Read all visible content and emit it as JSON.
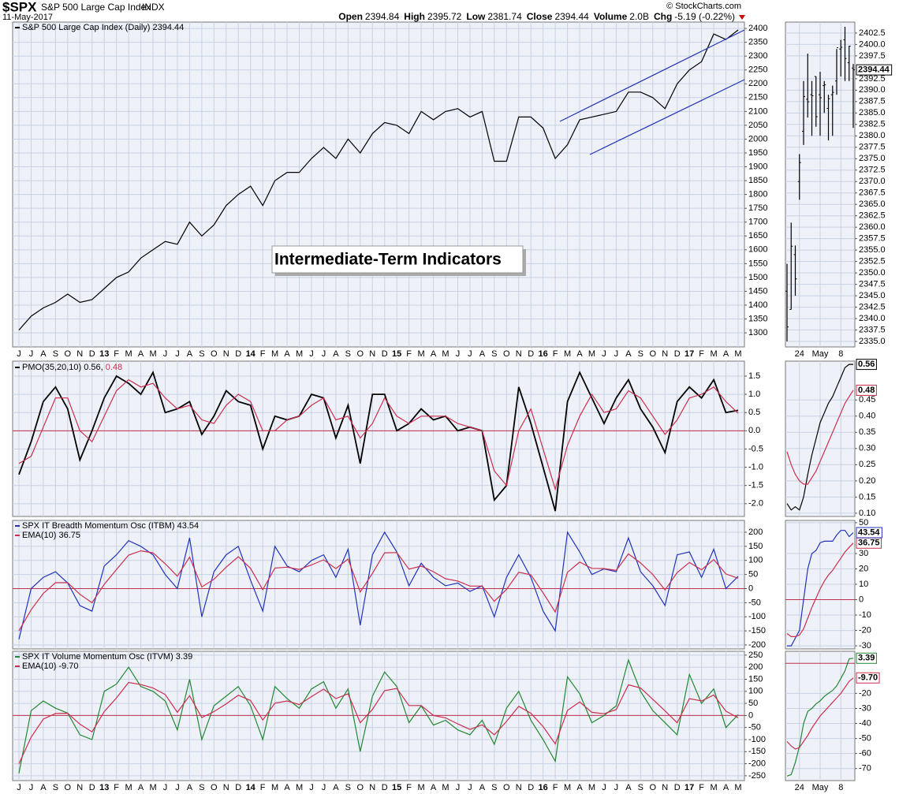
{
  "header": {
    "symbol": "$SPX",
    "name": "S&P 500 Large Cap Index",
    "exchange": "INDX",
    "date": "11-May-2017",
    "credit": "© StockCharts.com",
    "quote": [
      {
        "label": "Open",
        "value": "2394.84"
      },
      {
        "label": "High",
        "value": "2395.72"
      },
      {
        "label": "Low",
        "value": "2381.74"
      },
      {
        "label": "Close",
        "value": "2394.44"
      },
      {
        "label": "Volume",
        "value": "2.0B"
      },
      {
        "label": "Chg",
        "value": "-5.19 (-0.22%)"
      }
    ]
  },
  "chart_data": [
    {
      "type": "line",
      "annotation": "Intermediate-Term Indicators",
      "categories": [
        "J",
        "J",
        "A",
        "S",
        "O",
        "N",
        "D",
        "13",
        "F",
        "M",
        "A",
        "M",
        "J",
        "J",
        "A",
        "S",
        "O",
        "N",
        "D",
        "14",
        "F",
        "M",
        "A",
        "M",
        "J",
        "J",
        "A",
        "S",
        "O",
        "N",
        "D",
        "15",
        "F",
        "M",
        "A",
        "M",
        "J",
        "J",
        "A",
        "S",
        "O",
        "N",
        "D",
        "16",
        "F",
        "M",
        "A",
        "M",
        "J",
        "J",
        "A",
        "S",
        "O",
        "N",
        "D",
        "17",
        "F",
        "M",
        "A",
        "M"
      ],
      "series": [
        {
          "name": "S&P 500 Large Cap Index (Daily) 2394.44",
          "color": "#000000",
          "values": [
            1310,
            1360,
            1390,
            1410,
            1440,
            1410,
            1420,
            1460,
            1500,
            1520,
            1570,
            1600,
            1630,
            1620,
            1700,
            1650,
            1690,
            1760,
            1800,
            1830,
            1760,
            1850,
            1880,
            1880,
            1930,
            1970,
            1930,
            2000,
            1950,
            2020,
            2060,
            2050,
            2020,
            2100,
            2070,
            2100,
            2110,
            2080,
            2100,
            1920,
            1920,
            2080,
            2080,
            2040,
            1930,
            1980,
            2070,
            2080,
            2090,
            2100,
            2170,
            2170,
            2150,
            2110,
            2200,
            2250,
            2280,
            2380,
            2360,
            2394.44
          ]
        }
      ],
      "ylim": [
        1249,
        2423
      ],
      "yticks": [
        1300,
        1350,
        1400,
        1450,
        1500,
        1550,
        1600,
        1650,
        1700,
        1750,
        1800,
        1850,
        1900,
        1950,
        2000,
        2050,
        2100,
        2150,
        2200,
        2250,
        2300,
        2350,
        2400
      ],
      "grid": true
    },
    {
      "type": "line",
      "hline": 0,
      "series": [
        {
          "name": "PMO(35,20,10) 0.56,",
          "color": "#000000",
          "values": [
            -1.2,
            -0.3,
            0.8,
            1.2,
            0.6,
            -0.8,
            0.0,
            0.9,
            1.5,
            1.3,
            1.0,
            1.6,
            0.5,
            0.6,
            0.8,
            -0.1,
            0.4,
            1.1,
            0.8,
            0.7,
            -0.5,
            0.4,
            0.3,
            0.4,
            1.0,
            0.9,
            -0.2,
            0.7,
            -0.9,
            1.0,
            1.0,
            0.0,
            0.2,
            0.6,
            0.3,
            0.4,
            0.0,
            0.1,
            0.0,
            -1.9,
            -1.5,
            1.2,
            0.2,
            -1.0,
            -2.2,
            0.8,
            1.6,
            0.9,
            0.2,
            0.9,
            1.4,
            0.6,
            0.1,
            -0.6,
            0.8,
            1.2,
            0.9,
            1.4,
            0.5,
            0.56
          ]
        },
        {
          "name": "0.48",
          "color": "#cc2e4e",
          "values": [
            -0.9,
            -0.7,
            0.1,
            0.9,
            0.9,
            0.0,
            -0.3,
            0.4,
            1.1,
            1.4,
            1.2,
            1.3,
            0.9,
            0.6,
            0.7,
            0.3,
            0.2,
            0.7,
            1.0,
            0.8,
            0.0,
            0.0,
            0.3,
            0.4,
            0.7,
            0.9,
            0.3,
            0.4,
            -0.2,
            0.2,
            0.9,
            0.4,
            0.2,
            0.4,
            0.4,
            0.4,
            0.2,
            0.1,
            0.0,
            -1.1,
            -1.5,
            0.0,
            0.6,
            -0.5,
            -1.6,
            -0.4,
            0.4,
            1.0,
            0.5,
            0.6,
            1.1,
            0.9,
            0.4,
            -0.1,
            0.3,
            0.9,
            1.0,
            1.2,
            0.8,
            0.48
          ]
        }
      ],
      "ylim": [
        -2.35,
        1.91
      ],
      "yticks": [
        {
          "value": -2,
          "label": "-2.0"
        },
        -1.5,
        {
          "value": -1,
          "label": "-1.0"
        },
        -0.5,
        {
          "value": 0,
          "label": "0.0"
        },
        0.5,
        {
          "value": 1,
          "label": "1.0"
        },
        1.5
      ],
      "grid": true
    },
    {
      "type": "line",
      "hline": 0,
      "series": [
        {
          "name": "SPX IT Breadth Momentum Osc (ITBM) 43.54",
          "color": "#2233bb",
          "values": [
            -180,
            0,
            40,
            60,
            20,
            -60,
            -80,
            80,
            120,
            170,
            150,
            120,
            50,
            0,
            180,
            -100,
            60,
            120,
            150,
            30,
            -80,
            150,
            80,
            60,
            100,
            120,
            40,
            140,
            -130,
            120,
            200,
            130,
            10,
            90,
            40,
            10,
            20,
            -10,
            10,
            -100,
            40,
            120,
            40,
            -80,
            -150,
            200,
            130,
            50,
            70,
            60,
            180,
            60,
            10,
            -60,
            120,
            130,
            40,
            140,
            0,
            43.54
          ]
        },
        {
          "name": "EMA(10) 36.75",
          "color": "#cc2e4e",
          "values": [
            -150,
            -75,
            -17,
            21,
            21,
            -20,
            -50,
            15,
            68,
            119,
            134,
            127,
            88,
            44,
            112,
            6,
            33,
            76,
            113,
            72,
            -4,
            73,
            76,
            68,
            84,
            102,
            71,
            105,
            -12,
            54,
            127,
            128,
            69,
            80,
            60,
            35,
            27,
            9,
            9,
            -45,
            -3,
            58,
            49,
            -15,
            -83,
            58,
            94,
            72,
            71,
            65,
            123,
            91,
            50,
            -5,
            57,
            93,
            67,
            103,
            52,
            36.75
          ]
        }
      ],
      "ylim": [
        -214,
        242
      ],
      "yticks": [
        -200,
        -150,
        -100,
        -50,
        0,
        50,
        100,
        150,
        200
      ],
      "grid": true
    },
    {
      "type": "line",
      "hline": 0,
      "categories": [
        "J",
        "J",
        "A",
        "S",
        "O",
        "N",
        "D",
        "13",
        "F",
        "M",
        "A",
        "M",
        "J",
        "J",
        "A",
        "S",
        "O",
        "N",
        "D",
        "14",
        "F",
        "M",
        "A",
        "M",
        "J",
        "J",
        "A",
        "S",
        "O",
        "N",
        "D",
        "15",
        "F",
        "M",
        "A",
        "M",
        "J",
        "J",
        "A",
        "S",
        "O",
        "N",
        "D",
        "16",
        "F",
        "M",
        "A",
        "M",
        "J",
        "J",
        "A",
        "S",
        "O",
        "N",
        "D",
        "17",
        "F",
        "M",
        "A",
        "M"
      ],
      "series": [
        {
          "name": "SPX IT Volume Momentum Osc (ITVM) 3.39",
          "color": "#228833",
          "values": [
            -240,
            20,
            60,
            30,
            10,
            -80,
            -100,
            100,
            130,
            200,
            120,
            100,
            60,
            -60,
            150,
            -100,
            40,
            80,
            120,
            40,
            -100,
            120,
            70,
            30,
            110,
            140,
            30,
            110,
            -150,
            80,
            180,
            120,
            -30,
            40,
            -40,
            -20,
            -60,
            -80,
            -20,
            -120,
            30,
            100,
            -20,
            -100,
            -190,
            160,
            90,
            -30,
            0,
            40,
            230,
            100,
            20,
            -30,
            -80,
            170,
            50,
            110,
            -50,
            3.39
          ]
        },
        {
          "name": "EMA(10) -9.70",
          "color": "#cc2e4e",
          "values": [
            -200,
            -90,
            -15,
            8,
            9,
            -36,
            -68,
            16,
            73,
            137,
            128,
            114,
            87,
            13,
            82,
            -9,
            16,
            48,
            84,
            62,
            -19,
            51,
            60,
            45,
            78,
            109,
            70,
            90,
            -30,
            25,
            103,
            112,
            41,
            41,
            0,
            -10,
            -35,
            -58,
            -39,
            -80,
            -25,
            38,
            9,
            -46,
            -118,
            21,
            56,
            13,
            7,
            24,
            127,
            114,
            67,
            19,
            -30,
            70,
            60,
            85,
            18,
            -9.7
          ]
        }
      ],
      "ylim": [
        -270,
        266
      ],
      "yticks": [
        -250,
        -200,
        -150,
        -100,
        -50,
        0,
        50,
        100,
        150,
        200,
        250
      ],
      "grid": true
    },
    {
      "type": "ohlc",
      "color": "#000000",
      "categories": [
        null,
        null,
        null,
        "24",
        null,
        null,
        null,
        null,
        "May",
        null,
        null,
        null,
        null,
        "8",
        null,
        null,
        null
      ],
      "open": [
        2346,
        2342,
        2354,
        2370,
        2381,
        2388,
        2389,
        2393,
        2389,
        2391,
        2386,
        2389,
        2392,
        2399,
        2401,
        2396,
        2394.84
      ],
      "high": [
        2352,
        2361,
        2356,
        2376,
        2392,
        2398,
        2392,
        2393,
        2394,
        2392,
        2389,
        2391,
        2399,
        2401,
        2403.87,
        2399.7,
        2395.72
      ],
      "low": [
        2335,
        2342,
        2345,
        2366,
        2378,
        2384,
        2380,
        2382,
        2380,
        2385,
        2379,
        2380,
        2389,
        2393,
        2392,
        2392,
        2381.74
      ],
      "close": [
        2338.17,
        2355.84,
        2348.69,
        2374.15,
        2388.61,
        2387.45,
        2388.77,
        2384.2,
        2388.33,
        2391.17,
        2388.13,
        2389.52,
        2399.29,
        2399.38,
        2396.92,
        2399.63,
        2394.44
      ],
      "ylim": [
        2333.8,
        2404.9
      ],
      "yticks": [
        {
          "value": 2335,
          "label": "2335.0"
        },
        2337.5,
        {
          "value": 2340,
          "label": "2340.0"
        },
        2342.5,
        {
          "value": 2345,
          "label": "2345.0"
        },
        2347.5,
        {
          "value": 2350,
          "label": "2350.0"
        },
        2352.5,
        {
          "value": 2355,
          "label": "2355.0"
        },
        2357.5,
        {
          "value": 2360,
          "label": "2360.0"
        },
        2362.5,
        {
          "value": 2365,
          "label": "2365.0"
        },
        2367.5,
        {
          "value": 2370,
          "label": "2370.0"
        },
        2372.5,
        {
          "value": 2375,
          "label": "2375.0"
        },
        2377.5,
        {
          "value": 2380,
          "label": "2380.0"
        },
        2382.5,
        {
          "value": 2385,
          "label": "2385.0"
        },
        2387.5,
        {
          "value": 2390,
          "label": "2390.0"
        },
        2392.5,
        2394.44,
        2397.5,
        {
          "value": 2400,
          "label": "2400.0"
        },
        2402.5
      ],
      "grid": true
    },
    {
      "type": "line",
      "series": [
        {
          "color": "#000000",
          "values": [
            0.13,
            0.11,
            0.12,
            0.11,
            0.15,
            0.22,
            0.28,
            0.33,
            0.38,
            0.41,
            0.44,
            0.46,
            0.49,
            0.52,
            0.55,
            0.56,
            0.56
          ]
        },
        {
          "color": "#cc2e4e",
          "values": [
            0.29,
            0.25,
            0.22,
            0.2,
            0.19,
            0.19,
            0.21,
            0.23,
            0.26,
            0.29,
            0.32,
            0.35,
            0.38,
            0.41,
            0.44,
            0.46,
            0.48
          ]
        }
      ],
      "ylim": [
        0.09,
        0.57
      ],
      "yticks": [
        {
          "value": 0.1,
          "label": "0.10"
        },
        0.15,
        {
          "value": 0.2,
          "label": "0.20"
        },
        0.25,
        {
          "value": 0.3,
          "label": "0.30"
        },
        0.35,
        {
          "value": 0.4,
          "label": "0.40"
        },
        0.45,
        0.48,
        0.56
      ],
      "grid": true
    },
    {
      "type": "line",
      "hline": 0,
      "series": [
        {
          "color": "#2233bb",
          "values": [
            -30,
            -30,
            -25,
            -20,
            0,
            20,
            30,
            32,
            37,
            38,
            38,
            38,
            42,
            45,
            45,
            41,
            43.54
          ]
        },
        {
          "color": "#cc2e4e",
          "values": [
            -22,
            -24,
            -24,
            -23,
            -19,
            -12,
            -5,
            1,
            7,
            12,
            16,
            19,
            23,
            27,
            31,
            34,
            36.75
          ]
        }
      ],
      "ylim": [
        -32,
        51.5
      ],
      "yticks": [
        -30,
        -20,
        -10,
        0,
        10,
        20,
        30,
        36.75,
        43.54,
        50
      ],
      "grid": true
    },
    {
      "type": "line",
      "hline": 0,
      "categories": [
        null,
        null,
        null,
        "24",
        null,
        null,
        null,
        null,
        "May",
        null,
        null,
        null,
        null,
        "8",
        null,
        null,
        null
      ],
      "series": [
        {
          "color": "#228833",
          "values": [
            -75,
            -74,
            -66,
            -55,
            -40,
            -32,
            -30,
            -27,
            -25,
            -22,
            -20,
            -18,
            -15,
            -10,
            -5,
            3,
            3.39
          ]
        },
        {
          "color": "#cc2e4e",
          "values": [
            -52,
            -55,
            -57,
            -56,
            -52,
            -48,
            -43,
            -39,
            -35,
            -32,
            -29,
            -26,
            -23,
            -20,
            -16,
            -12,
            -9.7
          ]
        }
      ],
      "ylim": [
        -78,
        8
      ],
      "yticks": [
        -70,
        -60,
        -50,
        -40,
        -30,
        -20,
        {
          "value": -9.7,
          "label": "-9.70"
        },
        3.39
      ],
      "grid": true
    }
  ]
}
